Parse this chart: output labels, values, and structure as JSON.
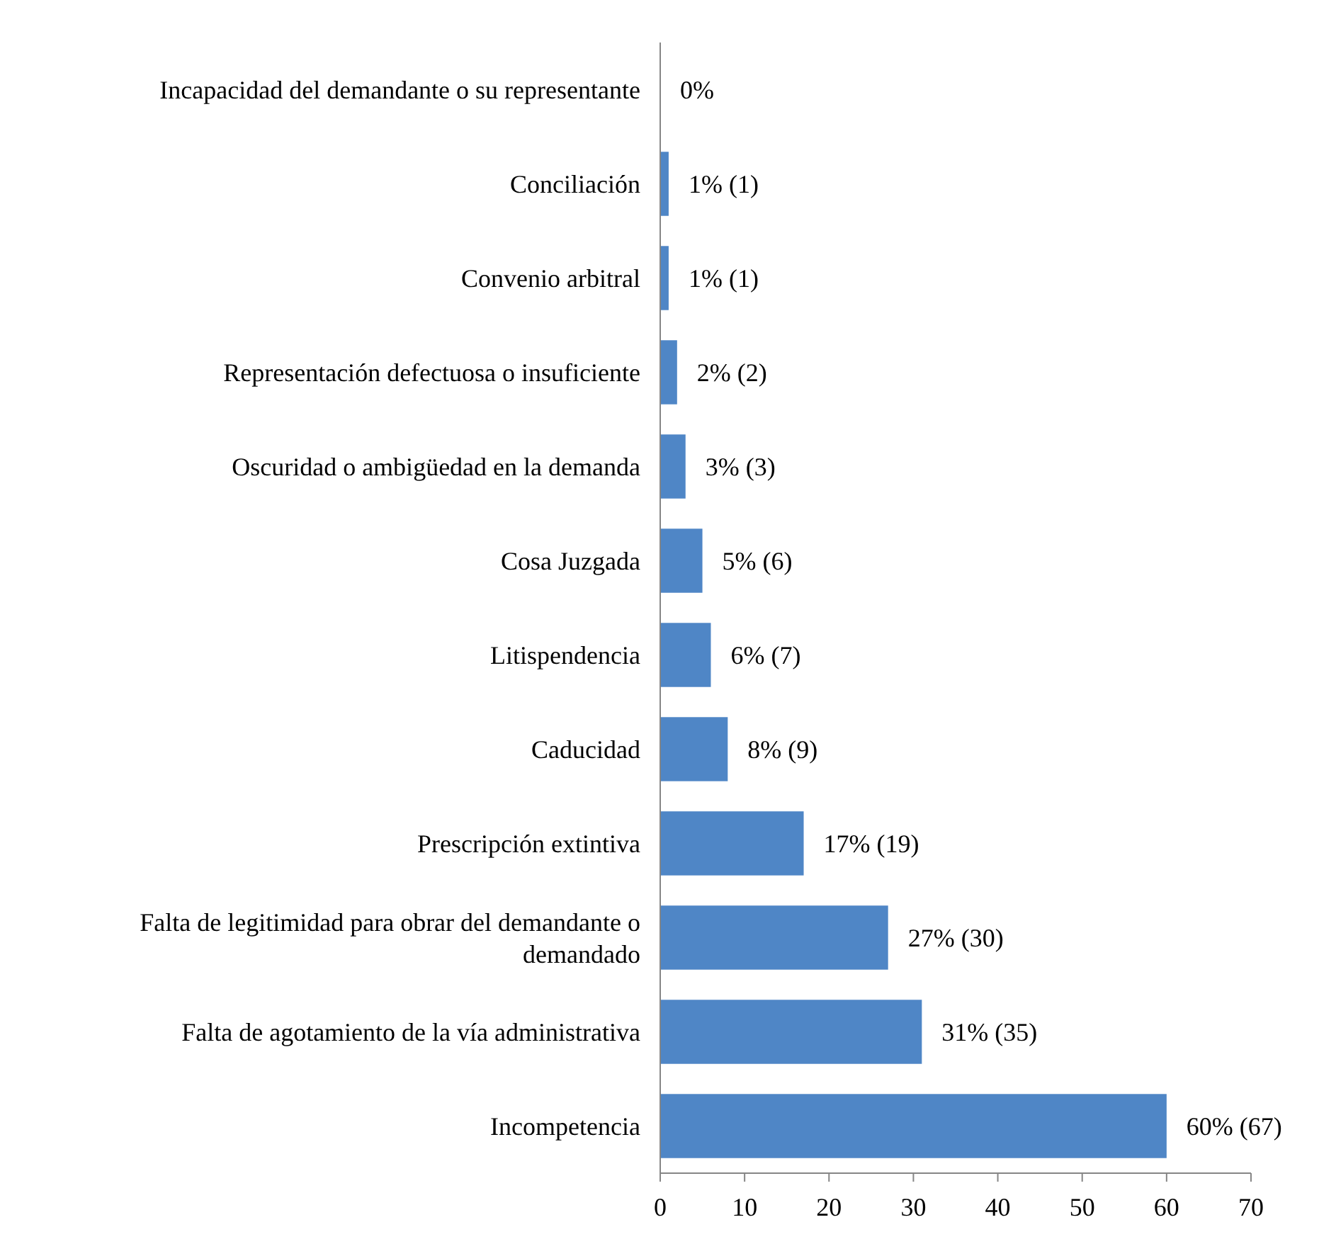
{
  "chart_data": {
    "type": "bar",
    "orientation": "horizontal",
    "categories": [
      "Incapacidad del demandante o su representante",
      "Conciliación",
      "Convenio arbitral",
      "Representación defectuosa o insuficiente",
      "Oscuridad o ambigüedad en la demanda",
      "Cosa Juzgada",
      "Litispendencia",
      "Caducidad",
      "Prescripción extintiva",
      "Falta de legitimidad para obrar del demandante o demandado",
      "Falta de agotamiento de la vía administrativa",
      "Incompetencia"
    ],
    "values": [
      0,
      1,
      1,
      2,
      3,
      5,
      6,
      8,
      17,
      27,
      31,
      60
    ],
    "value_labels": [
      "0%",
      "1% (1)",
      "1% (1)",
      "2% (2)",
      "3% (3)",
      "5% (6)",
      "6% (7)",
      "8% (9)",
      "17% (19)",
      "27% (30)",
      "31% (35)",
      "60% (67)"
    ],
    "color": "#4f86c6",
    "xlim": [
      0,
      70
    ],
    "xticks": [
      0,
      10,
      20,
      30,
      40,
      50,
      60,
      70
    ],
    "grid": false
  }
}
